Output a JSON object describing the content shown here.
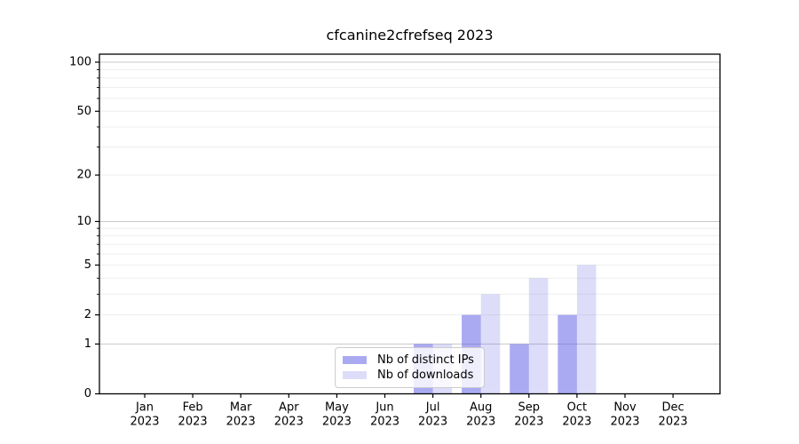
{
  "title": "cfcanine2cfrefseq 2023",
  "chart_data": {
    "type": "bar",
    "title": "cfcanine2cfrefseq 2023",
    "x_months": [
      "Jan",
      "Feb",
      "Mar",
      "Apr",
      "May",
      "Jun",
      "Jul",
      "Aug",
      "Sep",
      "Oct",
      "Nov",
      "Dec"
    ],
    "x_year": "2023",
    "series": [
      {
        "name": "Nb of distinct IPs",
        "color": "rgba(85,85,230,0.5)",
        "values": [
          0,
          0,
          0,
          0,
          0,
          0,
          1,
          2,
          1,
          2,
          0,
          0
        ]
      },
      {
        "name": "Nb of downloads",
        "color": "rgba(85,85,230,0.2)",
        "values": [
          0,
          0,
          0,
          0,
          0,
          0,
          1,
          3,
          4,
          5,
          0,
          0
        ]
      }
    ],
    "yscale": "log1p",
    "ylim": [
      0,
      112
    ],
    "yticks_labeled": [
      0,
      1,
      2,
      5,
      10,
      20,
      50,
      100
    ],
    "ygrid_major": [
      1,
      10,
      100
    ],
    "ygrid_minor": [
      2,
      3,
      4,
      5,
      6,
      7,
      8,
      9,
      20,
      30,
      40,
      50,
      60,
      70,
      80,
      90
    ],
    "grid": "horizontal",
    "legend_position": "lower-center-inside"
  },
  "colors": {
    "bar_distinct_ips": "rgba(85,85,230,0.5)",
    "bar_downloads": "rgba(85,85,230,0.2)",
    "grid_major": "#c9c9c9",
    "grid_minor": "#ededed",
    "spine": "#000000",
    "legend_border": "#cccccc"
  }
}
